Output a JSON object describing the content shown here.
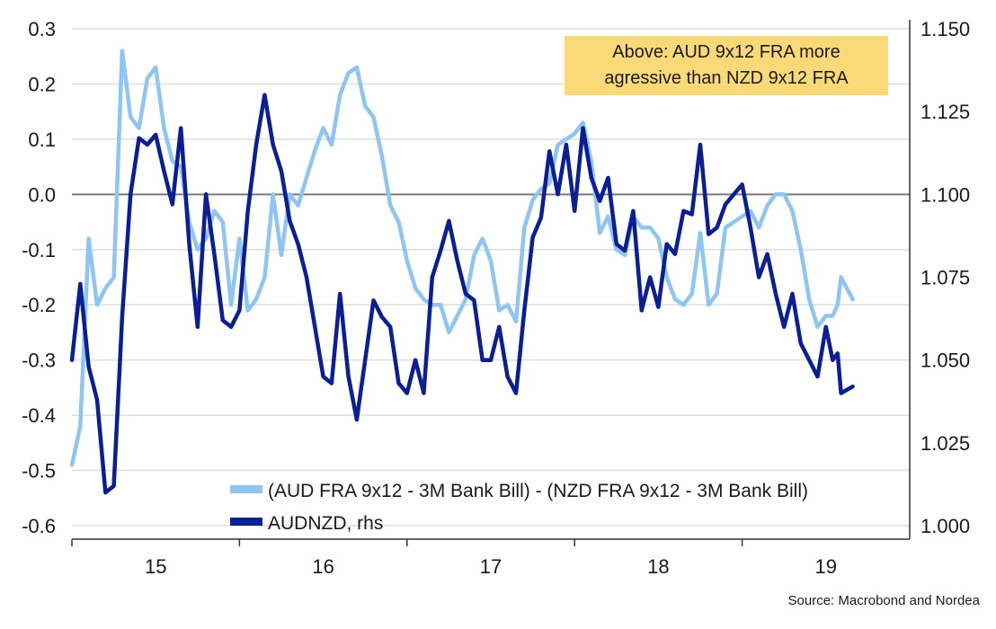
{
  "chart_data": {
    "type": "line",
    "x_ticks": [
      "15",
      "16",
      "17",
      "18",
      "19"
    ],
    "y_left": {
      "ylim": [
        -0.6,
        0.3
      ],
      "ticks": [
        "0.3",
        "0.2",
        "0.1",
        "0.0",
        "-0.1",
        "-0.2",
        "-0.3",
        "-0.4",
        "-0.5",
        "-0.6"
      ]
    },
    "y_right": {
      "ylim": [
        1.0,
        1.15
      ],
      "ticks": [
        "1.150",
        "1.125",
        "1.100",
        "1.075",
        "1.050",
        "1.025",
        "1.000"
      ]
    },
    "grid": true,
    "annotation": "Above: AUD 9x12 FRA more agressive than NZD 9x12 FRA",
    "legend_position": "bottom",
    "series": [
      {
        "name": "(AUD FRA 9x12 - 3M Bank Bill) - (NZD FRA 9x12 - 3M Bank Bill)",
        "axis": "left",
        "color": "#8ec5f2",
        "x": [
          14.5,
          14.55,
          14.6,
          14.65,
          14.7,
          14.75,
          14.8,
          14.85,
          14.9,
          14.95,
          15.0,
          15.05,
          15.1,
          15.15,
          15.2,
          15.25,
          15.3,
          15.35,
          15.4,
          15.45,
          15.5,
          15.55,
          15.6,
          15.65,
          15.7,
          15.75,
          15.8,
          15.85,
          15.9,
          15.95,
          16.0,
          16.05,
          16.1,
          16.15,
          16.2,
          16.25,
          16.3,
          16.35,
          16.4,
          16.45,
          16.5,
          16.55,
          16.6,
          16.65,
          16.7,
          16.75,
          16.8,
          16.85,
          16.9,
          16.95,
          17.0,
          17.05,
          17.1,
          17.15,
          17.2,
          17.25,
          17.3,
          17.35,
          17.4,
          17.45,
          17.5,
          17.55,
          17.6,
          17.65,
          17.7,
          17.75,
          17.8,
          17.85,
          17.9,
          17.95,
          18.0,
          18.05,
          18.1,
          18.15,
          18.2,
          18.25,
          18.3,
          18.35,
          18.4,
          18.45,
          18.5,
          18.55,
          18.6,
          18.65,
          18.7,
          18.75,
          18.8,
          18.85,
          18.9,
          18.95,
          19.0,
          19.04,
          19.07,
          19.09,
          19.16
        ],
        "y": [
          -0.49,
          -0.42,
          -0.08,
          -0.2,
          -0.17,
          -0.15,
          0.26,
          0.14,
          0.12,
          0.21,
          0.23,
          0.12,
          0.06,
          0.05,
          -0.05,
          -0.1,
          -0.08,
          -0.03,
          -0.05,
          -0.2,
          -0.08,
          -0.21,
          -0.19,
          -0.15,
          0.0,
          -0.11,
          0.0,
          -0.02,
          0.03,
          0.08,
          0.12,
          0.09,
          0.18,
          0.22,
          0.23,
          0.16,
          0.14,
          0.07,
          -0.02,
          -0.05,
          -0.12,
          -0.17,
          -0.19,
          -0.2,
          -0.2,
          -0.25,
          -0.22,
          -0.19,
          -0.11,
          -0.08,
          -0.12,
          -0.21,
          -0.2,
          -0.23,
          -0.06,
          -0.01,
          0.01,
          0.02,
          0.09,
          0.1,
          0.11,
          0.13,
          0.06,
          -0.07,
          -0.04,
          -0.1,
          -0.11,
          -0.04,
          -0.06,
          -0.06,
          -0.08,
          -0.15,
          -0.19,
          -0.2,
          -0.18,
          -0.07,
          -0.2,
          -0.18,
          -0.06,
          -0.05,
          -0.04,
          -0.03,
          -0.06,
          -0.02,
          0.0,
          0.0,
          -0.03,
          -0.1,
          -0.19,
          -0.24,
          -0.22,
          -0.22,
          -0.2,
          -0.15,
          -0.19
        ]
      },
      {
        "name": "AUDNZD, rhs",
        "axis": "right",
        "color": "#0a1e96",
        "x": [
          14.5,
          14.55,
          14.6,
          14.65,
          14.7,
          14.75,
          14.8,
          14.85,
          14.9,
          14.95,
          15.0,
          15.05,
          15.1,
          15.15,
          15.2,
          15.25,
          15.3,
          15.35,
          15.4,
          15.45,
          15.5,
          15.55,
          15.6,
          15.65,
          15.7,
          15.75,
          15.8,
          15.85,
          15.9,
          15.95,
          16.0,
          16.05,
          16.1,
          16.15,
          16.2,
          16.25,
          16.3,
          16.35,
          16.4,
          16.45,
          16.5,
          16.55,
          16.6,
          16.65,
          16.7,
          16.75,
          16.8,
          16.85,
          16.9,
          16.95,
          17.0,
          17.05,
          17.1,
          17.15,
          17.2,
          17.25,
          17.3,
          17.35,
          17.4,
          17.45,
          17.5,
          17.55,
          17.6,
          17.65,
          17.7,
          17.75,
          17.8,
          17.85,
          17.9,
          17.95,
          18.0,
          18.05,
          18.1,
          18.15,
          18.2,
          18.25,
          18.3,
          18.35,
          18.4,
          18.45,
          18.5,
          18.55,
          18.6,
          18.65,
          18.7,
          18.75,
          18.8,
          18.85,
          18.9,
          18.95,
          19.0,
          19.04,
          19.07,
          19.09,
          19.16
        ],
        "y": [
          1.05,
          1.073,
          1.048,
          1.038,
          1.01,
          1.012,
          1.063,
          1.1,
          1.117,
          1.115,
          1.118,
          1.107,
          1.097,
          1.12,
          1.085,
          1.06,
          1.1,
          1.082,
          1.062,
          1.06,
          1.065,
          1.095,
          1.115,
          1.13,
          1.115,
          1.107,
          1.092,
          1.085,
          1.075,
          1.06,
          1.045,
          1.043,
          1.07,
          1.045,
          1.032,
          1.05,
          1.068,
          1.063,
          1.06,
          1.043,
          1.04,
          1.05,
          1.04,
          1.075,
          1.083,
          1.092,
          1.08,
          1.07,
          1.068,
          1.05,
          1.05,
          1.06,
          1.045,
          1.04,
          1.065,
          1.087,
          1.093,
          1.113,
          1.1,
          1.115,
          1.095,
          1.12,
          1.105,
          1.098,
          1.105,
          1.085,
          1.083,
          1.095,
          1.065,
          1.075,
          1.066,
          1.085,
          1.082,
          1.095,
          1.094,
          1.115,
          1.088,
          1.09,
          1.097,
          1.1,
          1.103,
          1.09,
          1.075,
          1.082,
          1.07,
          1.06,
          1.07,
          1.055,
          1.05,
          1.045,
          1.06,
          1.05,
          1.052,
          1.04,
          1.042
        ]
      }
    ]
  },
  "source": "Source: Macrobond and Nordea"
}
